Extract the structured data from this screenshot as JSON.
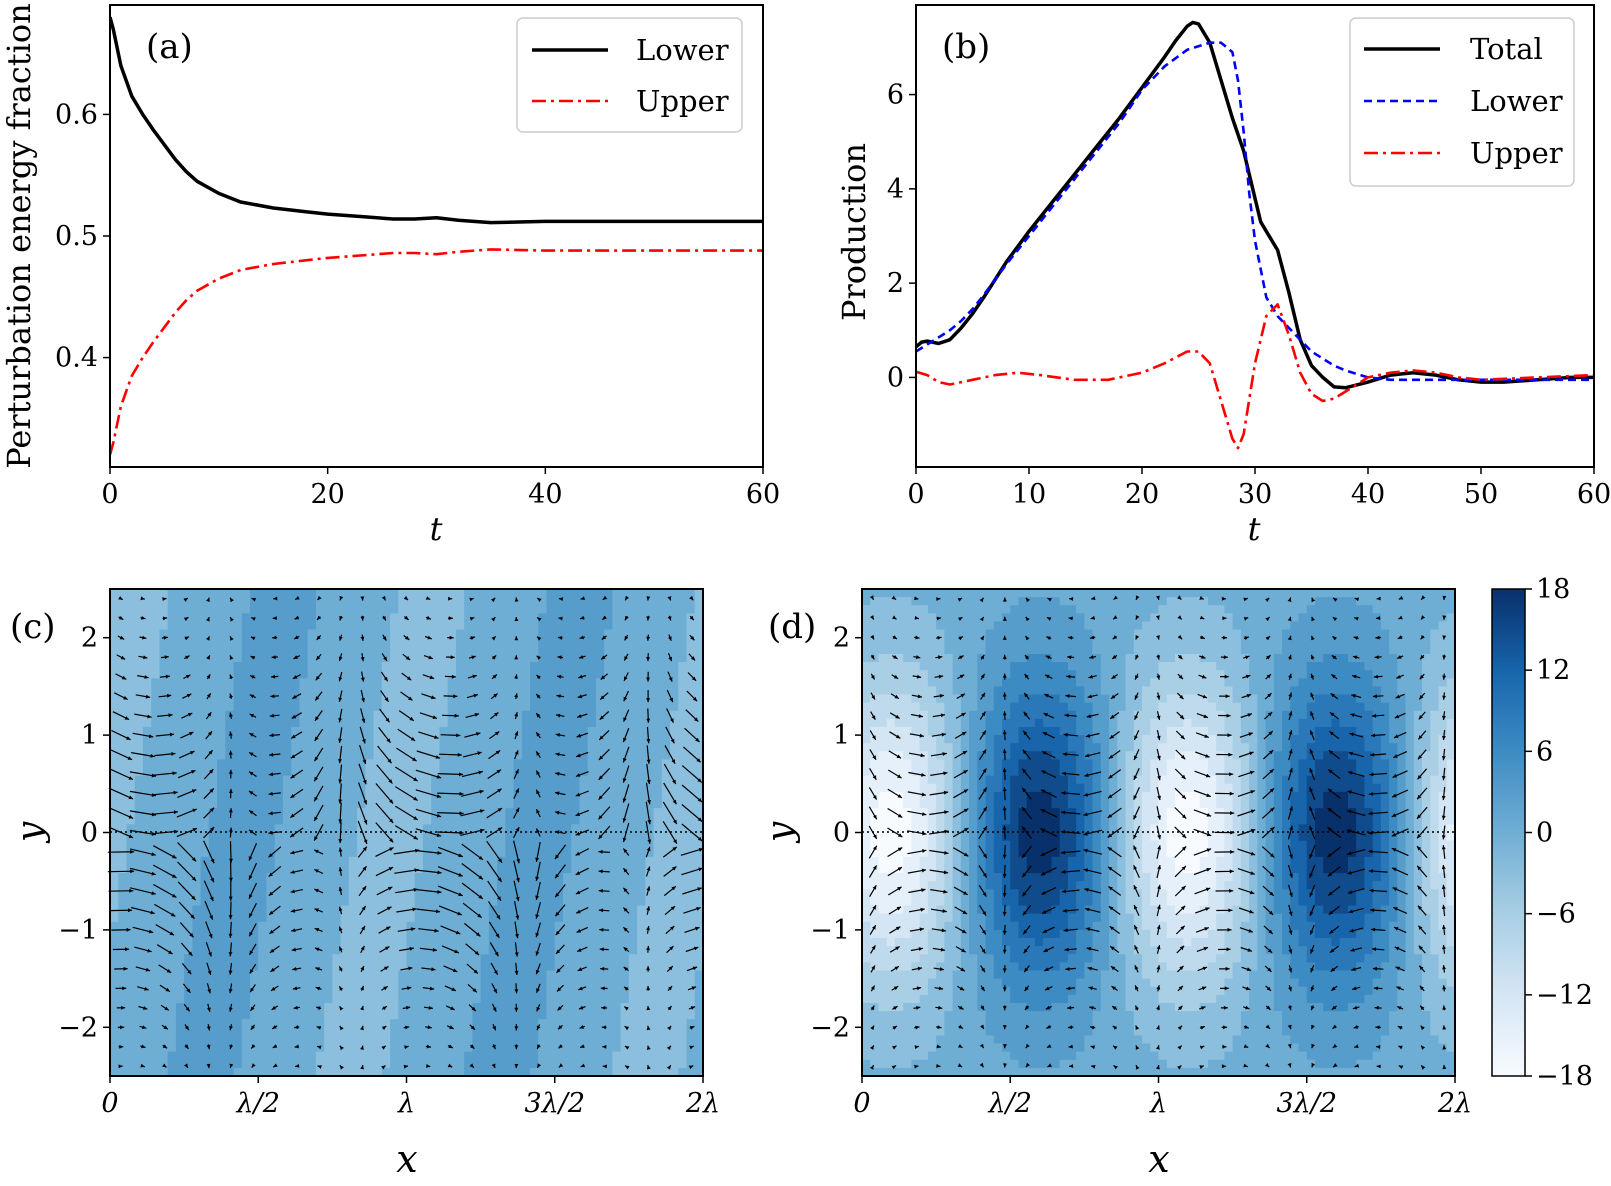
{
  "chart_data": [
    {
      "panel_label": "(a)",
      "type": "line",
      "xlabel": "t",
      "ylabel": "Perturbation energy fraction",
      "xlim": [
        0,
        60
      ],
      "ylim": [
        0.31,
        0.69
      ],
      "xticks": [
        0,
        20,
        40,
        60
      ],
      "yticks": [
        0.4,
        0.5,
        0.6
      ],
      "ytick_labels": [
        "0.4",
        "0.5",
        "0.6"
      ],
      "legend_position": "top-right",
      "series": [
        {
          "name": "Lower",
          "color": "#000000",
          "style": "solid",
          "x": [
            0,
            0.3,
            1,
            2,
            3,
            4,
            5,
            6,
            7,
            8,
            10,
            12,
            15,
            18,
            20,
            23,
            26,
            28,
            30,
            32,
            35,
            40,
            45,
            50,
            55,
            60
          ],
          "y": [
            0.68,
            0.67,
            0.64,
            0.615,
            0.6,
            0.587,
            0.575,
            0.563,
            0.553,
            0.545,
            0.535,
            0.528,
            0.523,
            0.52,
            0.518,
            0.516,
            0.514,
            0.514,
            0.515,
            0.513,
            0.511,
            0.512,
            0.512,
            0.512,
            0.512,
            0.512
          ]
        },
        {
          "name": "Upper",
          "color": "#ff0000",
          "style": "dashdot",
          "x": [
            0,
            0.3,
            1,
            2,
            3,
            4,
            5,
            6,
            7,
            8,
            10,
            12,
            15,
            18,
            20,
            23,
            26,
            28,
            30,
            32,
            35,
            40,
            45,
            50,
            55,
            60
          ],
          "y": [
            0.32,
            0.33,
            0.36,
            0.385,
            0.4,
            0.413,
            0.425,
            0.437,
            0.447,
            0.455,
            0.465,
            0.472,
            0.477,
            0.48,
            0.482,
            0.484,
            0.486,
            0.486,
            0.485,
            0.487,
            0.489,
            0.488,
            0.488,
            0.488,
            0.488,
            0.488
          ]
        }
      ]
    },
    {
      "panel_label": "(b)",
      "type": "line",
      "xlabel": "t",
      "ylabel": "Production",
      "xlim": [
        0,
        60
      ],
      "ylim": [
        -1.9,
        7.9
      ],
      "xticks": [
        0,
        10,
        20,
        30,
        40,
        50,
        60
      ],
      "yticks": [
        0,
        2,
        4,
        6
      ],
      "legend_position": "top-right",
      "series": [
        {
          "name": "Total",
          "color": "#000000",
          "style": "solid",
          "x": [
            0,
            0.5,
            1,
            2,
            3,
            4,
            5,
            6,
            8,
            10,
            12,
            14,
            16,
            18,
            20,
            22,
            23,
            24,
            24.5,
            25,
            26,
            27,
            28,
            29,
            30,
            30.5,
            31,
            32,
            33,
            34,
            35,
            36,
            37,
            38,
            40,
            42,
            44,
            46,
            48,
            50,
            52,
            55,
            58,
            60
          ],
          "y": [
            0.65,
            0.75,
            0.77,
            0.72,
            0.8,
            1.05,
            1.35,
            1.7,
            2.45,
            3.1,
            3.7,
            4.3,
            4.9,
            5.5,
            6.15,
            6.8,
            7.15,
            7.45,
            7.53,
            7.5,
            7.1,
            6.3,
            5.5,
            4.8,
            3.8,
            3.3,
            3.1,
            2.7,
            1.8,
            0.8,
            0.25,
            0.0,
            -0.2,
            -0.22,
            -0.1,
            0.05,
            0.1,
            0.05,
            -0.05,
            -0.1,
            -0.1,
            -0.05,
            0.0,
            0.0
          ]
        },
        {
          "name": "Lower",
          "color": "#0000ff",
          "style": "dashed",
          "x": [
            0,
            1,
            2,
            3,
            4,
            5,
            6,
            8,
            10,
            12,
            14,
            16,
            18,
            20,
            22,
            24,
            26,
            27,
            28,
            28.5,
            29,
            29.5,
            30,
            31,
            32,
            33,
            34,
            35,
            36,
            37,
            38,
            40,
            42,
            45,
            50,
            55,
            60
          ],
          "y": [
            0.55,
            0.7,
            0.85,
            1.0,
            1.2,
            1.45,
            1.75,
            2.4,
            3.0,
            3.6,
            4.2,
            4.8,
            5.4,
            6.1,
            6.6,
            6.95,
            7.1,
            7.1,
            6.9,
            6.3,
            5.2,
            3.9,
            2.9,
            1.7,
            1.3,
            1.05,
            0.8,
            0.55,
            0.4,
            0.25,
            0.15,
            0.0,
            -0.05,
            -0.05,
            -0.05,
            -0.05,
            -0.05
          ]
        },
        {
          "name": "Upper",
          "color": "#ff0000",
          "style": "dashdot",
          "x": [
            0,
            1,
            2,
            3,
            5,
            7,
            9,
            11,
            14,
            17,
            20,
            22,
            24,
            25,
            26,
            27,
            28,
            28.5,
            29,
            30,
            31,
            32,
            33,
            34,
            35,
            36,
            37,
            38,
            40,
            42,
            44,
            46,
            48,
            50,
            55,
            60
          ],
          "y": [
            0.12,
            0.05,
            -0.1,
            -0.15,
            -0.05,
            0.05,
            0.1,
            0.05,
            -0.05,
            -0.05,
            0.1,
            0.3,
            0.55,
            0.55,
            0.3,
            -0.5,
            -1.3,
            -1.5,
            -1.2,
            0.3,
            1.3,
            1.55,
            0.9,
            0.1,
            -0.35,
            -0.5,
            -0.45,
            -0.3,
            0.0,
            0.1,
            0.15,
            0.1,
            0.0,
            -0.05,
            0.0,
            0.05
          ]
        }
      ]
    },
    {
      "panel_label": "(c)",
      "type": "heatmap",
      "xlabel": "x",
      "ylabel": "y",
      "xlim": [
        0,
        2
      ],
      "ylim": [
        -2.5,
        2.5
      ],
      "xtick_labels": [
        "0",
        "λ/2",
        "λ",
        "3λ/2",
        "2λ"
      ],
      "yticks": [
        -2,
        -1,
        0,
        1,
        2
      ],
      "ytick_labels": [
        "−2",
        "−1",
        "0",
        "1",
        "2"
      ],
      "field": "weak shaded contours near zero with quiver velocity arrows; dotted line at y = 0",
      "amplitude": 2
    },
    {
      "panel_label": "(d)",
      "type": "heatmap",
      "xlabel": "x",
      "ylabel": "y",
      "xlim": [
        0,
        2
      ],
      "ylim": [
        -2.5,
        2.5
      ],
      "xtick_labels": [
        "0",
        "λ/2",
        "λ",
        "3λ/2",
        "2λ"
      ],
      "yticks": [
        -2,
        -1,
        0,
        1,
        2
      ],
      "ytick_labels": [
        "−2",
        "−1",
        "0",
        "1",
        "2"
      ],
      "field": "filled contours with maxima near x = 3λ/5 and 8λ/5 on y = 0, minima near x = λ/10 and 11λ/10; quiver velocity arrows; dotted line at y = 0",
      "amplitude": 18,
      "colorbar": {
        "range": [
          -18,
          18
        ],
        "ticks": [
          18,
          12,
          6,
          0,
          -6,
          -12,
          -18
        ],
        "tick_labels": [
          "18",
          "12",
          "6",
          "0",
          "−6",
          "−12",
          "−18"
        ],
        "colormap": "Blues",
        "color_min": "#f7fbff",
        "color_max": "#08306b"
      }
    }
  ]
}
